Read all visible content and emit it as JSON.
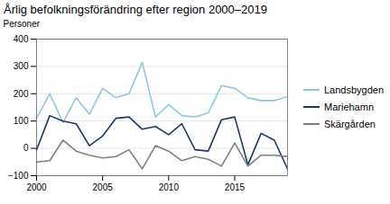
{
  "chart_data": {
    "type": "line",
    "title": "Årlig befolkningsförändring efter region 2000–2019",
    "ylabel": "Personer",
    "x": [
      2000,
      2001,
      2002,
      2003,
      2004,
      2005,
      2006,
      2007,
      2008,
      2009,
      2010,
      2011,
      2012,
      2013,
      2014,
      2015,
      2016,
      2017,
      2018,
      2019
    ],
    "series": [
      {
        "name": "Landsbygden",
        "color": "#92C5DE",
        "values": [
          110,
          200,
          95,
          185,
          125,
          220,
          185,
          200,
          315,
          115,
          160,
          120,
          115,
          130,
          230,
          220,
          185,
          175,
          175,
          190
        ]
      },
      {
        "name": "Mariehamn",
        "color": "#1F3864",
        "values": [
          -5,
          120,
          100,
          90,
          10,
          45,
          110,
          115,
          70,
          80,
          50,
          90,
          -5,
          -10,
          105,
          115,
          -60,
          55,
          30,
          -75
        ]
      },
      {
        "name": "Skärgården",
        "color": "#808080",
        "values": [
          -50,
          -45,
          30,
          -10,
          -25,
          -35,
          -30,
          -5,
          -75,
          10,
          -10,
          -45,
          -30,
          -40,
          -65,
          20,
          -65,
          -25,
          -25,
          -30
        ]
      }
    ],
    "xlim": [
      2000,
      2019
    ],
    "xticks": [
      2000,
      2005,
      2010,
      2015
    ],
    "ylim": [
      -100,
      400
    ],
    "yticks": [
      -100,
      0,
      100,
      200,
      300,
      400
    ],
    "grid": true,
    "legend": "right"
  }
}
